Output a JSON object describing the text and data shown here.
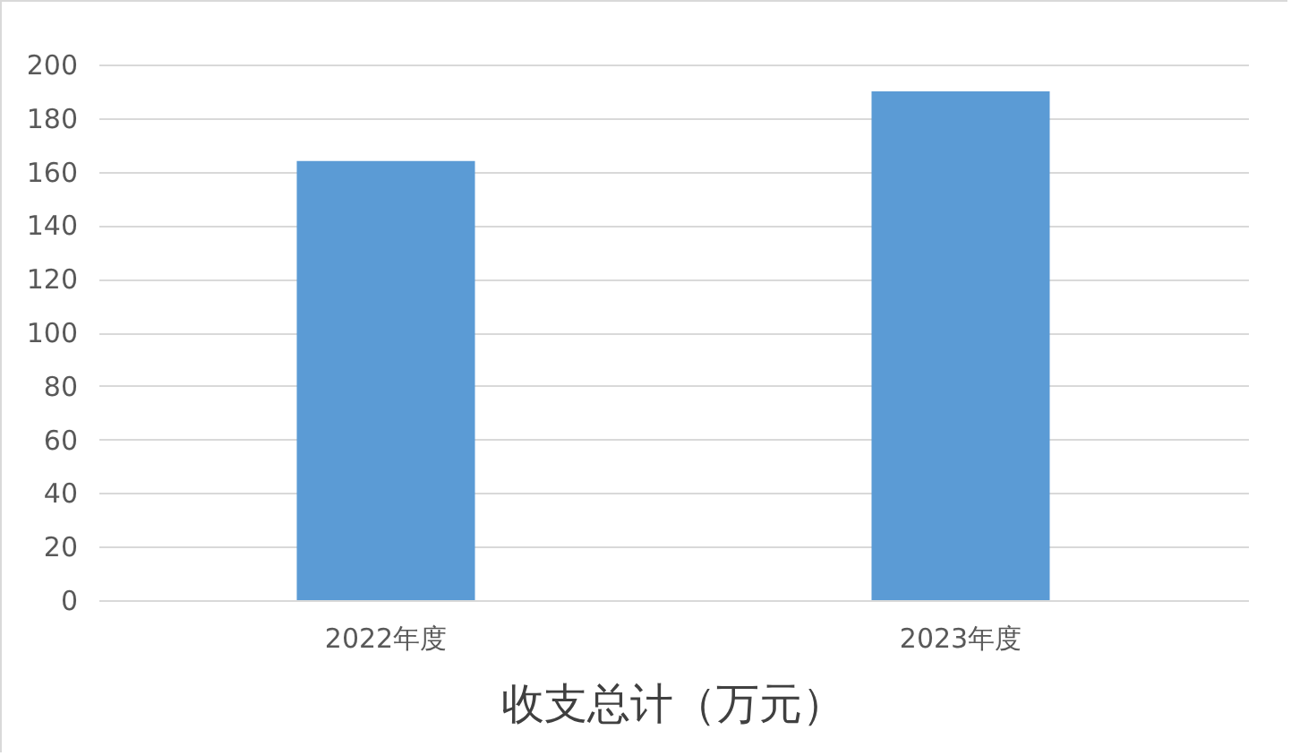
{
  "chart_data": {
    "type": "bar",
    "title": "收支总计（万元）",
    "categories": [
      "2022年度",
      "2023年度"
    ],
    "values": [
      164,
      190
    ],
    "color": "#5b9bd5",
    "ylim": [
      0,
      200
    ],
    "yticks": [
      0,
      20,
      40,
      60,
      80,
      100,
      120,
      140,
      160,
      180,
      200
    ],
    "grid": "y"
  }
}
